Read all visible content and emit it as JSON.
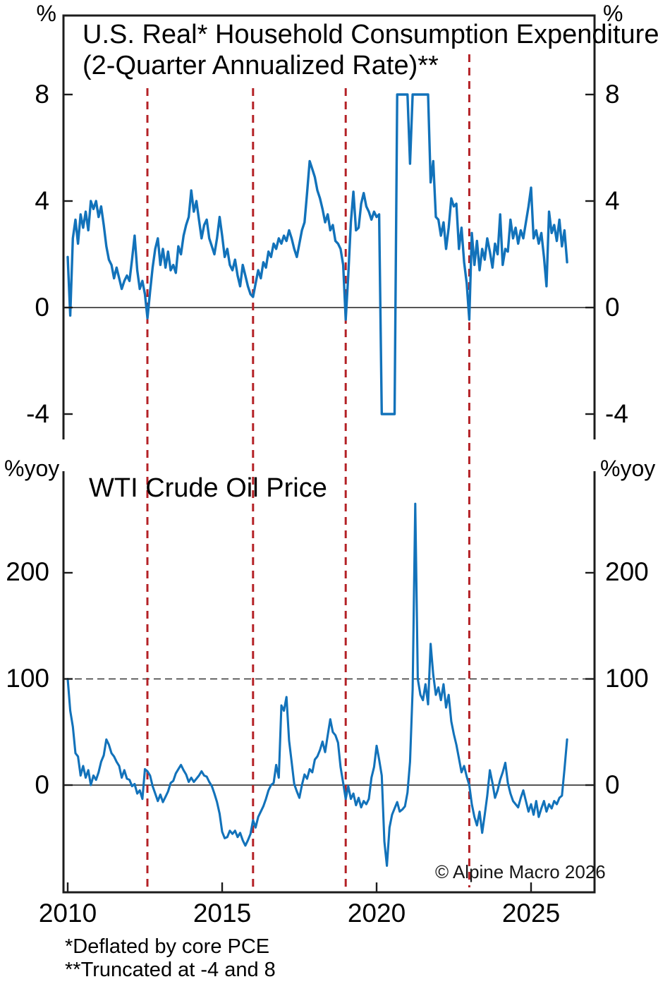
{
  "figure": {
    "top_panel": {
      "unit_left": "%",
      "unit_right": "%",
      "title_line1": "U.S. Real* Household Consumption Expenditure",
      "title_line2": "(2-Quarter Annualized Rate)**",
      "yticks": [
        "8",
        "4",
        "0",
        "-4"
      ]
    },
    "bottom_panel": {
      "unit_left": "%yoy",
      "unit_right": "%yoy",
      "title": "WTI Crude Oil Price",
      "yticks": [
        "200",
        "100",
        "0"
      ],
      "xticks": [
        "2010",
        "2015",
        "2020",
        "2025"
      ]
    },
    "footnote1": "*Deflated by core PCE",
    "footnote2": "**Truncated at -4 and 8",
    "copyright": "© Alpine Macro 2026"
  },
  "colors": {
    "series_line": "#1272ba",
    "event_line": "#b42126",
    "axis": "#1c1c1c",
    "zero_line": "#3d3d3d",
    "ref_line": "#333333",
    "text": "#000000"
  },
  "chart_data": [
    {
      "type": "line",
      "title": "U.S. Real* Household Consumption Expenditure (2-Quarter Annualized Rate)**",
      "ylabel": "%",
      "ylim": [
        -5,
        11
      ],
      "yticks": [
        8,
        4,
        0,
        -4
      ],
      "grid": false,
      "truncated_at": [
        -4,
        8
      ],
      "event_lines_years": [
        2012.58,
        2016.0,
        2019.0,
        2023.0
      ],
      "x_start": 2010.0,
      "x_step_months": 1,
      "series": [
        {
          "name": "real-household-consumption-2q-annualized-pct",
          "values": [
            1.9,
            -0.3,
            2.6,
            3.3,
            2.4,
            3.5,
            3.0,
            3.6,
            2.9,
            4.0,
            3.7,
            4.0,
            3.4,
            3.8,
            3.1,
            2.3,
            1.8,
            1.6,
            1.1,
            1.5,
            1.1,
            0.7,
            1.0,
            1.2,
            1.0,
            1.8,
            2.7,
            1.4,
            0.7,
            1.0,
            0.5,
            -0.4,
            0.6,
            1.5,
            2.2,
            2.6,
            1.6,
            2.2,
            1.5,
            2.1,
            1.4,
            1.6,
            1.3,
            2.3,
            2.0,
            2.7,
            3.1,
            3.4,
            4.4,
            3.6,
            4.0,
            3.3,
            2.6,
            3.1,
            3.3,
            2.6,
            2.3,
            2.0,
            2.6,
            3.4,
            2.7,
            1.9,
            2.2,
            1.6,
            1.4,
            1.8,
            1.2,
            0.8,
            1.6,
            1.2,
            0.8,
            0.5,
            0.4,
            0.9,
            1.4,
            1.1,
            1.7,
            1.5,
            2.1,
            1.9,
            2.4,
            2.2,
            2.6,
            2.4,
            2.7,
            2.5,
            2.9,
            2.6,
            2.2,
            1.9,
            2.4,
            2.9,
            3.2,
            4.3,
            5.5,
            5.2,
            4.9,
            4.4,
            4.1,
            3.7,
            3.2,
            3.5,
            2.9,
            3.1,
            2.5,
            2.4,
            2.2,
            1.6,
            -0.45,
            1.2,
            3.2,
            4.35,
            2.9,
            3.0,
            3.9,
            4.3,
            3.8,
            3.6,
            3.3,
            3.6,
            3.4,
            3.5,
            -4,
            -4,
            -4,
            -4,
            -4,
            -4,
            8,
            8,
            8,
            8,
            8,
            5.4,
            8,
            8,
            8,
            8,
            8,
            8,
            8,
            4.7,
            5.5,
            3.4,
            3.3,
            2.7,
            3.2,
            2.2,
            3.0,
            4.1,
            3.8,
            3.9,
            2.2,
            3.0,
            1.7,
            0.9,
            -0.45,
            2.8,
            1.6,
            2.5,
            1.4,
            2.2,
            1.8,
            2.6,
            2.1,
            1.5,
            2.4,
            2.0,
            3.5,
            1.6,
            2.2,
            2.1,
            3.3,
            2.6,
            3.0,
            2.4,
            2.9,
            2.6,
            3.2,
            3.8,
            4.5,
            2.6,
            2.9,
            2.4,
            2.8,
            1.9,
            0.8,
            3.6,
            2.8,
            3.1,
            2.5,
            3.3,
            2.3,
            2.9,
            1.7
          ]
        }
      ]
    },
    {
      "type": "line",
      "title": "WTI Crude Oil Price",
      "ylabel": "%yoy",
      "ylim": [
        -100,
        295
      ],
      "yticks": [
        200,
        100,
        0
      ],
      "grid": false,
      "ref_line_y": 100,
      "xticks": [
        2010,
        2015,
        2020,
        2025
      ],
      "x_start": 2010.0,
      "x_step_months": 1,
      "series": [
        {
          "name": "wti-crude-oil-price-pct-yoy",
          "values": [
            100,
            70,
            55,
            30,
            27,
            9,
            18,
            7,
            14,
            0,
            9,
            5,
            12,
            22,
            28,
            43,
            38,
            30,
            27,
            22,
            18,
            7,
            14,
            6,
            5,
            -1,
            1,
            -8,
            -5,
            -13,
            15,
            13,
            9,
            -1,
            -8,
            -15,
            -9,
            -16,
            -11,
            -6,
            2,
            4,
            11,
            15,
            19,
            14,
            10,
            3,
            7,
            3,
            6,
            9,
            13,
            9,
            8,
            3,
            -1,
            -8,
            -16,
            -27,
            -44,
            -50,
            -49,
            -43,
            -46,
            -43,
            -49,
            -45,
            -52,
            -57,
            -52,
            -46,
            -33,
            -40,
            -30,
            -25,
            -20,
            -13,
            -5,
            0,
            2,
            19,
            7,
            75,
            70,
            83,
            42,
            22,
            1,
            -6,
            -12,
            0,
            10,
            6,
            15,
            12,
            24,
            27,
            33,
            41,
            31,
            47,
            62,
            50,
            47,
            40,
            17,
            2,
            -13,
            -1,
            -13,
            -8,
            -19,
            -12,
            -21,
            -15,
            -18,
            -13,
            7,
            17,
            37,
            24,
            9,
            -53,
            -76,
            -40,
            -28,
            -22,
            -16,
            -25,
            -23,
            -20,
            -7,
            22,
            90,
            265,
            100,
            85,
            80,
            95,
            76,
            133,
            104,
            85,
            92,
            80,
            95,
            73,
            85,
            60,
            48,
            38,
            25,
            12,
            18,
            8,
            0,
            -18,
            -30,
            -38,
            -25,
            -45,
            -28,
            -10,
            14,
            2,
            -12,
            -5,
            5,
            12,
            21,
            2,
            -8,
            -15,
            -18,
            -21,
            -12,
            -5,
            -15,
            -25,
            -18,
            -28,
            -15,
            -30,
            -22,
            -15,
            -25,
            -18,
            -22,
            -15,
            -18,
            -12,
            -10,
            15,
            43
          ]
        }
      ]
    }
  ]
}
